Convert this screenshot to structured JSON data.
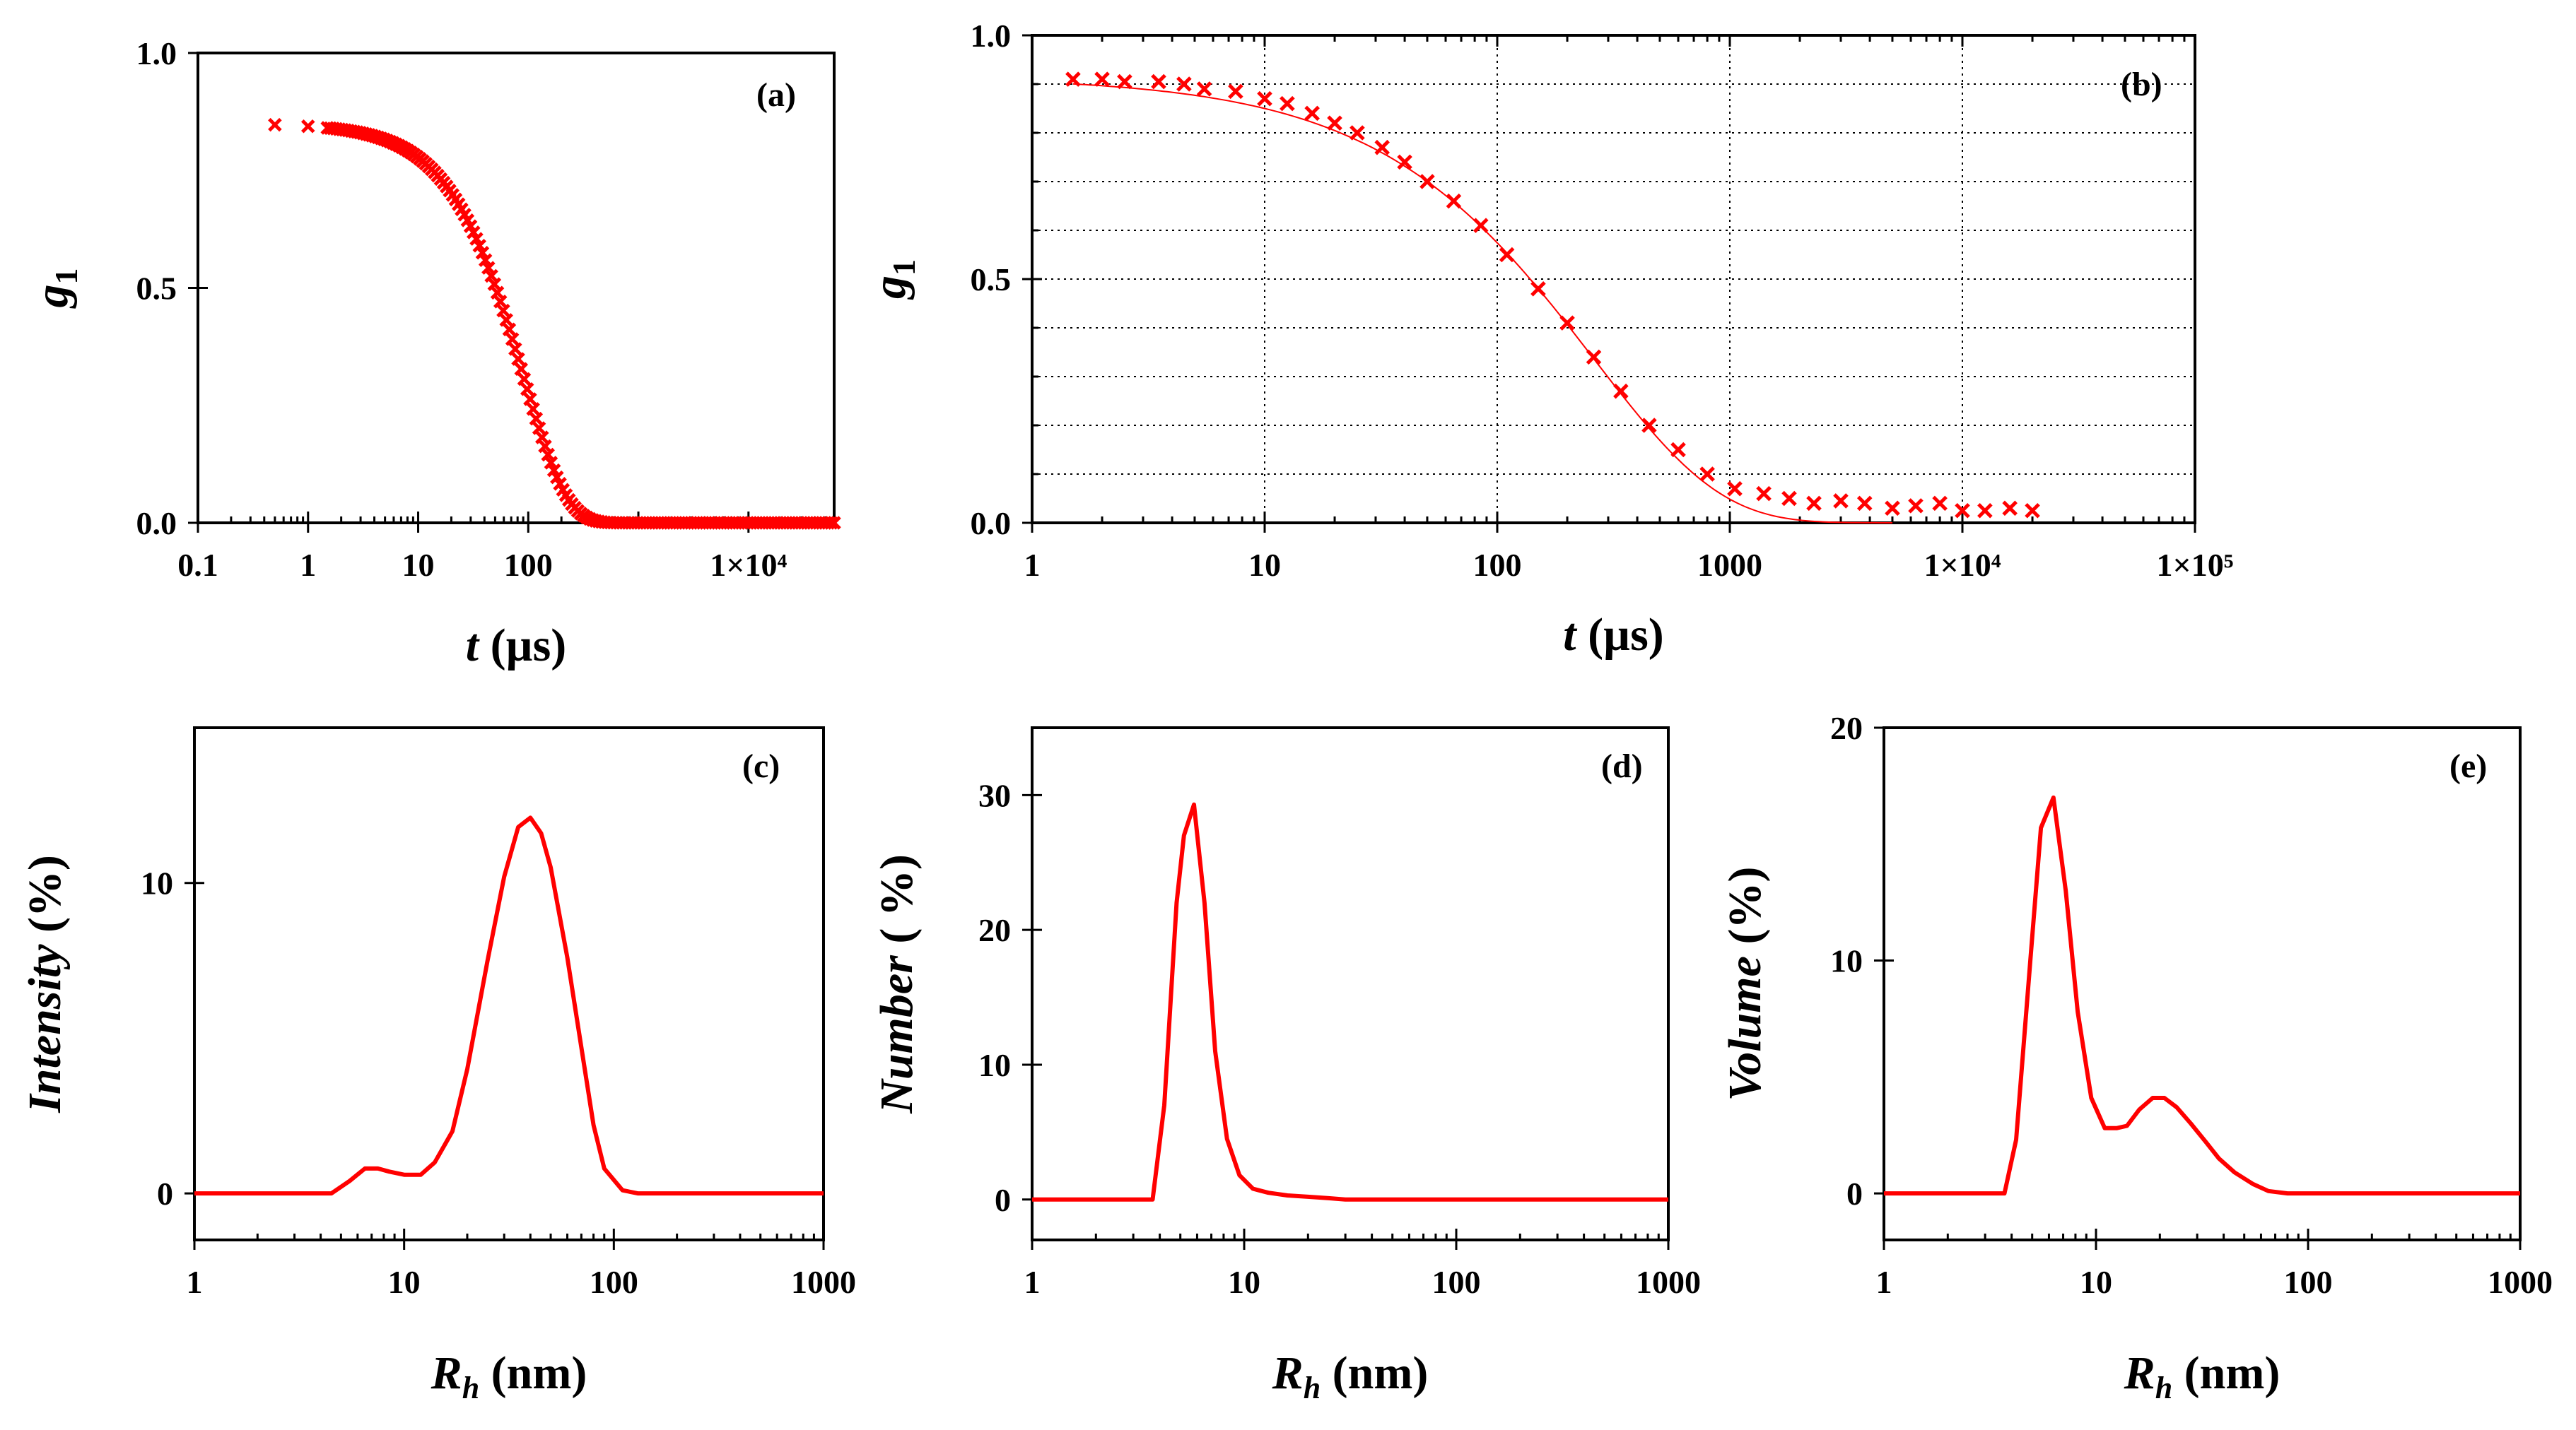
{
  "figure": {
    "panels": [
      {
        "id": "a",
        "tag": "(a)"
      },
      {
        "id": "b",
        "tag": "(b)"
      },
      {
        "id": "c",
        "tag": "(c)"
      },
      {
        "id": "d",
        "tag": "(d)"
      },
      {
        "id": "e",
        "tag": "(e)"
      }
    ]
  },
  "colors": {
    "data": "#ff0000",
    "axis": "#000000",
    "grid": "#000000"
  },
  "chart_data": [
    {
      "id": "a",
      "type": "scatter",
      "tag": "(a)",
      "xscale": "log",
      "xlim": [
        0.1,
        60000
      ],
      "ylim": [
        0,
        1
      ],
      "xticks": [
        0.1,
        1,
        10,
        100,
        10000
      ],
      "xtick_labels": [
        "0.1",
        "1",
        "10",
        "100",
        "1×10⁴"
      ],
      "yticks": [
        0,
        0.5,
        1
      ],
      "ytick_labels": [
        "0.0",
        "0.5",
        "1.0"
      ],
      "xlabel_italic": "t",
      "xlabel_rest": " (µs)",
      "ylabel": "g",
      "ylabel_sub": "1",
      "grid": false,
      "marker": "x",
      "series": [
        {
          "name": "g1 data",
          "tau_us": 90,
          "beta": 1.1,
          "amplitude": 0.85,
          "t_min_us": 0.5,
          "t_max_us": 60000
        }
      ]
    },
    {
      "id": "b",
      "type": "scatter",
      "tag": "(b)",
      "xscale": "log",
      "xlim": [
        1,
        100000
      ],
      "ylim": [
        0,
        1
      ],
      "xticks": [
        1,
        10,
        100,
        1000,
        10000,
        100000
      ],
      "xtick_labels": [
        "1",
        "10",
        "100",
        "1000",
        "1×10⁴",
        "1×10⁵"
      ],
      "yticks": [
        0,
        0.5,
        1
      ],
      "ytick_labels": [
        "0.0",
        "0.5",
        "1.0"
      ],
      "xlabel_italic": "t",
      "xlabel_rest": " (µs)",
      "ylabel": "g",
      "ylabel_sub": "1",
      "grid": true,
      "grid_y_step": 0.1,
      "marker": "x",
      "series": [
        {
          "name": "g1 data",
          "x": [
            1.5,
            2,
            2.5,
            3.5,
            4.5,
            5.5,
            7.5,
            10,
            12.5,
            16,
            20,
            25,
            32,
            40,
            50,
            65,
            85,
            110,
            150,
            200,
            260,
            340,
            450,
            600,
            800,
            1050,
            1400,
            1800,
            2300,
            3000,
            3800,
            5000,
            6300,
            8000,
            10000,
            12500,
            16000,
            20000
          ],
          "y": [
            0.91,
            0.91,
            0.905,
            0.905,
            0.9,
            0.89,
            0.885,
            0.87,
            0.86,
            0.84,
            0.82,
            0.8,
            0.77,
            0.74,
            0.7,
            0.66,
            0.61,
            0.55,
            0.48,
            0.41,
            0.34,
            0.27,
            0.2,
            0.15,
            0.1,
            0.07,
            0.06,
            0.05,
            0.04,
            0.045,
            0.04,
            0.03,
            0.035,
            0.04,
            0.025,
            0.025,
            0.03,
            0.025
          ]
        },
        {
          "name": "fit",
          "tau_us": 260,
          "beta": 0.8,
          "amplitude": 0.915,
          "t_min_us": 1.5,
          "t_max_us": 5000
        }
      ]
    },
    {
      "id": "c",
      "type": "line",
      "tag": "(c)",
      "xscale": "log",
      "xlim": [
        1,
        1000
      ],
      "ylim": [
        -1.5,
        15
      ],
      "xticks": [
        1,
        10,
        100,
        1000
      ],
      "xtick_labels": [
        "1",
        "10",
        "100",
        "1000"
      ],
      "yticks": [
        0,
        10
      ],
      "ytick_labels": [
        "0",
        "10"
      ],
      "xlabel_main": "R",
      "xlabel_sub": "h",
      "xlabel_rest": " (nm)",
      "ylabel_italic": "Intensity",
      "ylabel_rest": " (%)",
      "grid": false,
      "series": [
        {
          "name": "Intensity",
          "x": [
            1,
            4.5,
            5.5,
            6.5,
            7.5,
            8.5,
            10,
            12,
            14,
            17,
            20,
            25,
            30,
            35,
            40,
            45,
            50,
            60,
            70,
            80,
            90,
            110,
            130,
            1000
          ],
          "y": [
            0,
            0,
            0.4,
            0.8,
            0.8,
            0.7,
            0.6,
            0.6,
            1.0,
            2.0,
            4.0,
            7.5,
            10.2,
            11.8,
            12.1,
            11.6,
            10.5,
            7.6,
            4.7,
            2.2,
            0.8,
            0.1,
            0,
            0
          ]
        }
      ]
    },
    {
      "id": "d",
      "type": "line",
      "tag": "(d)",
      "xscale": "log",
      "xlim": [
        1,
        1000
      ],
      "ylim": [
        -3,
        35
      ],
      "xticks": [
        1,
        10,
        100,
        1000
      ],
      "xtick_labels": [
        "1",
        "10",
        "100",
        "1000"
      ],
      "yticks": [
        0,
        10,
        20,
        30
      ],
      "ytick_labels": [
        "0",
        "10",
        "20",
        "30"
      ],
      "xlabel_main": "R",
      "xlabel_sub": "h",
      "xlabel_rest": " (nm)",
      "ylabel_italic": "Number",
      "ylabel_rest": " ( %)",
      "grid": false,
      "series": [
        {
          "name": "Number",
          "x": [
            1,
            3.7,
            4.2,
            4.8,
            5.2,
            5.8,
            6.5,
            7.3,
            8.3,
            9.5,
            11,
            13,
            16,
            20,
            25,
            30,
            40,
            1000
          ],
          "y": [
            0,
            0,
            7,
            22,
            27,
            29.3,
            22,
            11,
            4.5,
            1.8,
            0.8,
            0.5,
            0.3,
            0.2,
            0.1,
            0,
            0,
            0
          ]
        }
      ]
    },
    {
      "id": "e",
      "type": "line",
      "tag": "(e)",
      "xscale": "log",
      "xlim": [
        1,
        1000
      ],
      "ylim": [
        -2,
        20
      ],
      "xticks": [
        1,
        10,
        100,
        1000
      ],
      "xtick_labels": [
        "1",
        "10",
        "100",
        "1000"
      ],
      "yticks": [
        0,
        10,
        20
      ],
      "ytick_labels": [
        "0",
        "10",
        "20"
      ],
      "xlabel_main": "R",
      "xlabel_sub": "h",
      "xlabel_rest": " (nm)",
      "ylabel_italic": "Volume",
      "ylabel_rest": " (%)",
      "grid": false,
      "series": [
        {
          "name": "Volume",
          "x": [
            1,
            3.7,
            4.2,
            4.9,
            5.5,
            6.3,
            7.2,
            8.2,
            9.5,
            11,
            12.5,
            14,
            16,
            18.5,
            21,
            24,
            28,
            33,
            38,
            45,
            55,
            65,
            80,
            100,
            1000
          ],
          "y": [
            0,
            0,
            2.3,
            10,
            15.7,
            17,
            13,
            7.8,
            4.1,
            2.8,
            2.8,
            2.9,
            3.6,
            4.1,
            4.1,
            3.7,
            3.0,
            2.2,
            1.5,
            0.9,
            0.4,
            0.1,
            0,
            0,
            0
          ]
        }
      ]
    }
  ]
}
